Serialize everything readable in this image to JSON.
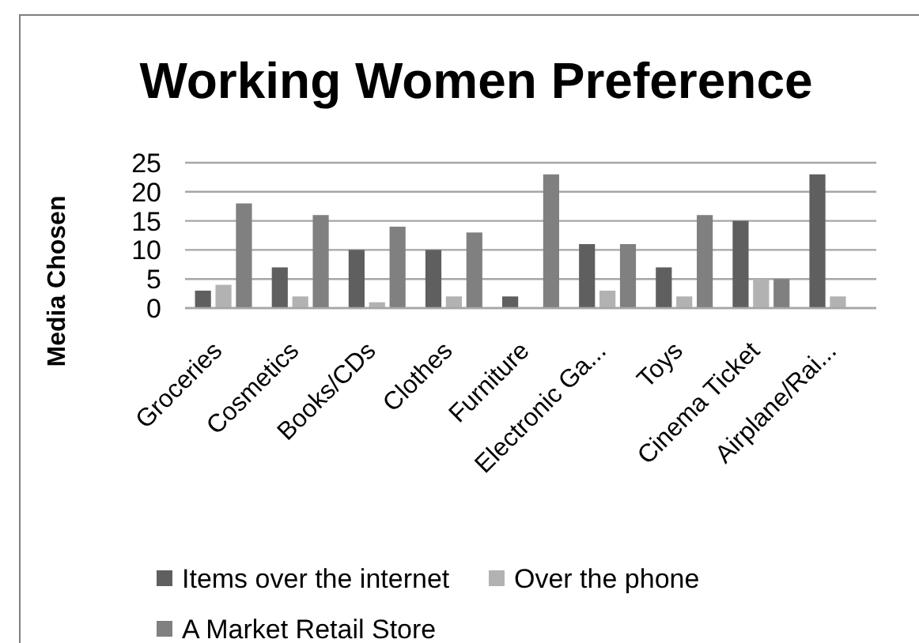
{
  "chart_data": {
    "type": "bar",
    "title": "Working Women Preference",
    "ylabel": "Media Chosen",
    "categories": [
      "Groceries",
      "Cosmetics",
      "Books/CDs",
      "Clothes",
      "Furniture",
      "Electronic Ga...",
      "Toys",
      "Cinema Ticket",
      "Airplane/Rai..."
    ],
    "series": [
      {
        "name": "Items over the internet",
        "color": "#5f5f5f",
        "values": [
          3,
          7,
          10,
          10,
          2,
          11,
          7,
          15,
          23
        ]
      },
      {
        "name": "Over the phone",
        "color": "#b2b2b2",
        "values": [
          4,
          2,
          1,
          2,
          0,
          3,
          2,
          5,
          2
        ]
      },
      {
        "name": "A Market Retail Store",
        "color": "#808080",
        "values": [
          18,
          16,
          14,
          13,
          23,
          11,
          16,
          5,
          0
        ]
      }
    ],
    "ylim": [
      0,
      25
    ],
    "yticks": [
      0,
      5,
      10,
      15,
      20,
      25
    ],
    "grid": "y",
    "legend": "bottom"
  }
}
